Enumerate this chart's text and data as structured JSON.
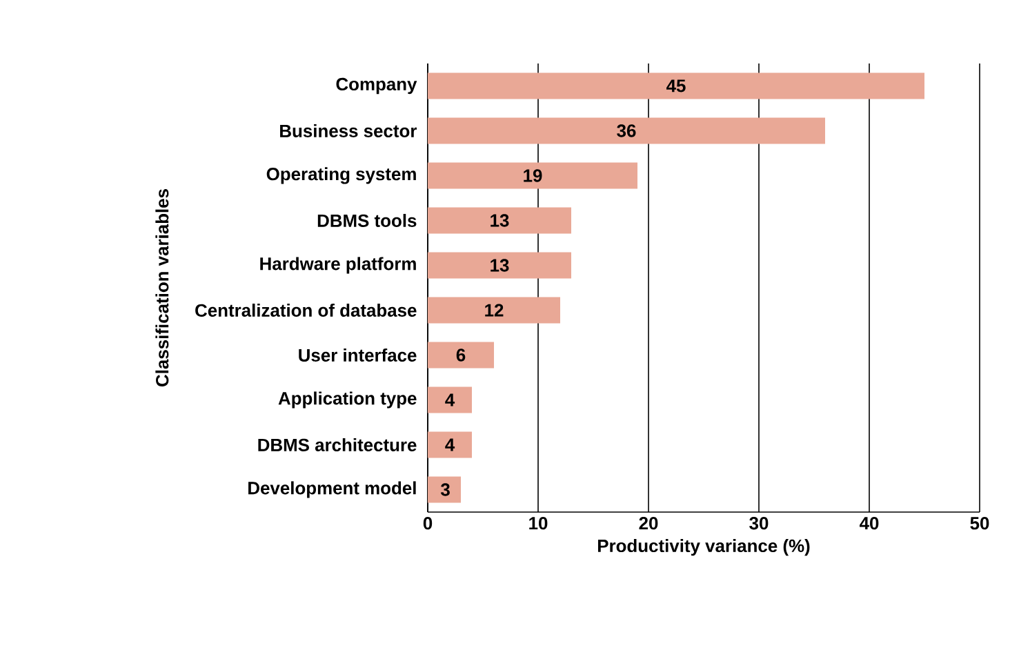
{
  "chart_data": {
    "type": "bar",
    "orientation": "horizontal",
    "xlabel": "Productivity variance (%)",
    "ylabel": "Classification variables",
    "categories": [
      "Company",
      "Business sector",
      "Operating system",
      "DBMS tools",
      "Hardware platform",
      "Centralization of database",
      "User interface",
      "Application type",
      "DBMS architecture",
      "Development model"
    ],
    "values": [
      45,
      36,
      19,
      13,
      13,
      12,
      6,
      4,
      4,
      3
    ],
    "color": "#e9a896",
    "xlim": [
      0,
      50
    ],
    "xticks": [
      0,
      10,
      20,
      30,
      40,
      50
    ],
    "grid": "x",
    "data_labels": true
  }
}
